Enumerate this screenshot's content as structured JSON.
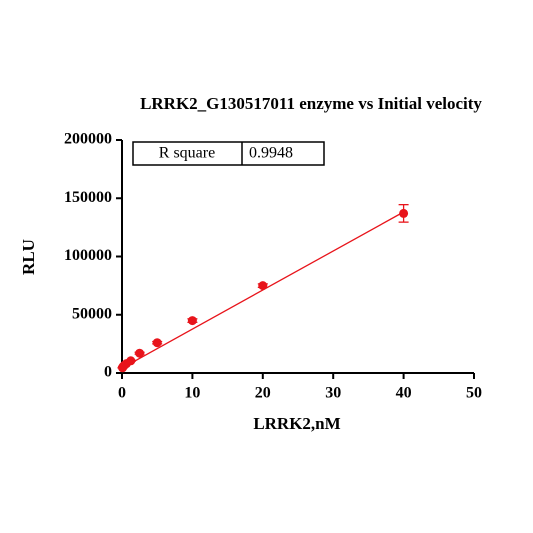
{
  "chart_data": {
    "type": "scatter",
    "title": "LRRK2_G130517011 enzyme vs Initial velocity",
    "x_label": "LRRK2,nM",
    "y_label": "RLU",
    "x": [
      0.078,
      0.156,
      0.3125,
      0.625,
      1.25,
      2.5,
      5,
      10,
      20,
      40
    ],
    "values": [
      4500,
      5500,
      6500,
      8000,
      10500,
      17000,
      26000,
      45000,
      75000,
      137000
    ],
    "errors": [
      200,
      200,
      300,
      300,
      400,
      800,
      1000,
      1500,
      1500,
      7500
    ],
    "color": "#e8141b",
    "fit": {
      "x": [
        0,
        40
      ],
      "values": [
        4200,
        138200
      ]
    },
    "annotation": {
      "label": "R square",
      "value": "0.9948"
    },
    "xlim": [
      0,
      50
    ],
    "xticks": [
      0,
      10,
      20,
      30,
      40,
      50
    ],
    "ylim": [
      0,
      200000
    ],
    "yticks": [
      0,
      50000,
      100000,
      150000,
      200000
    ],
    "grid": false
  }
}
